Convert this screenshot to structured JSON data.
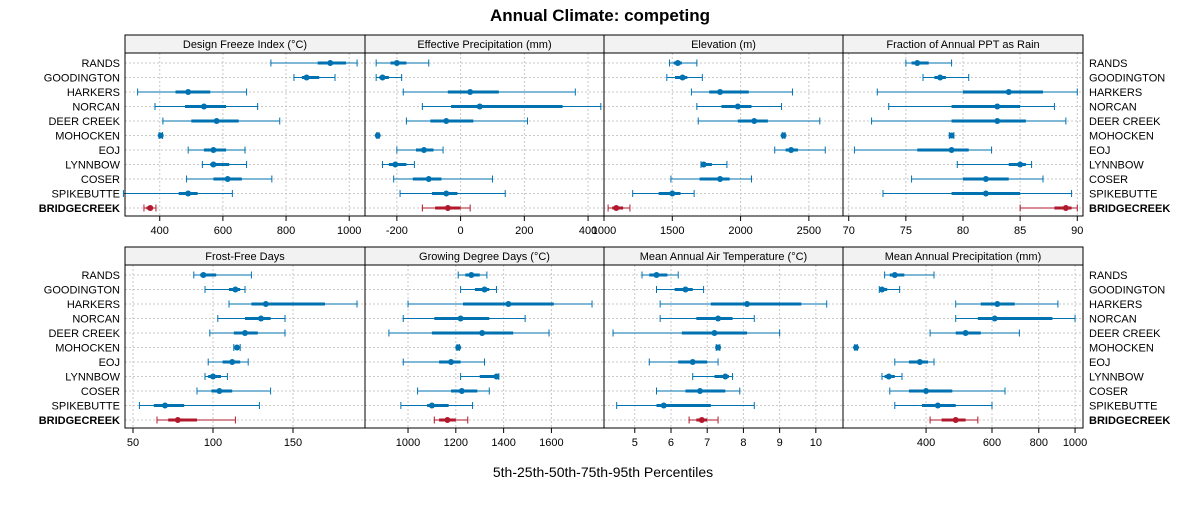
{
  "title": "Annual Climate: competing",
  "xlabel": "5th-25th-50th-75th-95th Percentiles",
  "colors": {
    "series": "#0072b2",
    "highlight": "#b2182b",
    "strip": "#f2f2f2",
    "grid": "#c8c8c8",
    "frame": "#000000"
  },
  "chart_data": {
    "type": "percentile-dotplot",
    "sites": [
      "RANDS",
      "GOODINGTON",
      "HARKERS",
      "NORCAN",
      "DEER CREEK",
      "MOHOCKEN",
      "EOJ",
      "LYNNBOW",
      "COSER",
      "SPIKEBUTTE",
      "BRIDGECREEK"
    ],
    "highlight_site": "BRIDGECREEK",
    "percentile_order": [
      "p5",
      "p25",
      "p50",
      "p75",
      "p95"
    ],
    "panels": [
      {
        "title": "Design Freeze Index (°C)",
        "scale": "linear",
        "xlim": [
          290,
          1050
        ],
        "ticks": [
          400,
          600,
          800,
          1000
        ],
        "tick_labels": [
          "400",
          "600",
          "800",
          "1000"
        ],
        "values": [
          [
            752,
            900,
            940,
            990,
            1025
          ],
          [
            825,
            850,
            865,
            905,
            955
          ],
          [
            330,
            450,
            490,
            560,
            675
          ],
          [
            385,
            480,
            540,
            610,
            710
          ],
          [
            410,
            500,
            580,
            650,
            780
          ],
          [
            398,
            400,
            403,
            406,
            409
          ],
          [
            490,
            540,
            570,
            610,
            670
          ],
          [
            535,
            560,
            570,
            620,
            675
          ],
          [
            485,
            570,
            615,
            660,
            755
          ],
          [
            285,
            460,
            490,
            520,
            630
          ],
          [
            350,
            358,
            370,
            378,
            388
          ]
        ]
      },
      {
        "title": "Effective Precipitation (mm)",
        "scale": "linear",
        "xlim": [
          -300,
          450
        ],
        "ticks": [
          -200,
          0,
          200,
          400
        ],
        "tick_labels": [
          "-200",
          "0",
          "200",
          "400"
        ],
        "values": [
          [
            -265,
            -220,
            -200,
            -170,
            -100
          ],
          [
            -265,
            -255,
            -245,
            -225,
            -185
          ],
          [
            -180,
            -40,
            30,
            120,
            360
          ],
          [
            -120,
            -30,
            60,
            320,
            440
          ],
          [
            -170,
            -95,
            -45,
            40,
            210
          ],
          [
            -263,
            -262,
            -260,
            -258,
            -256
          ],
          [
            -200,
            -140,
            -115,
            -85,
            -55
          ],
          [
            -245,
            -225,
            -205,
            -170,
            -145
          ],
          [
            -210,
            -150,
            -100,
            -60,
            100
          ],
          [
            -190,
            -90,
            -45,
            -10,
            140
          ],
          [
            -120,
            -80,
            -40,
            0,
            30
          ]
        ]
      },
      {
        "title": "Elevation (m)",
        "scale": "linear",
        "xlim": [
          1000,
          2750
        ],
        "ticks": [
          1000,
          1500,
          2000,
          2500
        ],
        "tick_labels": [
          "1000",
          "1500",
          "2000",
          "2500"
        ],
        "values": [
          [
            1480,
            1510,
            1540,
            1570,
            1680
          ],
          [
            1460,
            1520,
            1575,
            1610,
            1720
          ],
          [
            1640,
            1770,
            1850,
            2060,
            2380
          ],
          [
            1680,
            1860,
            1980,
            2080,
            2300
          ],
          [
            1690,
            1980,
            2100,
            2200,
            2580
          ],
          [
            2305,
            2310,
            2315,
            2320,
            2325
          ],
          [
            2250,
            2330,
            2370,
            2420,
            2620
          ],
          [
            1710,
            1720,
            1730,
            1790,
            1900
          ],
          [
            1490,
            1700,
            1850,
            1920,
            2080
          ],
          [
            1210,
            1400,
            1500,
            1560,
            1660
          ],
          [
            1030,
            1060,
            1090,
            1140,
            1190
          ]
        ]
      },
      {
        "title": "Fraction of Annual PPT as Rain",
        "scale": "linear",
        "xlim": [
          69.5,
          90.5
        ],
        "ticks": [
          70,
          75,
          80,
          85,
          90
        ],
        "tick_labels": [
          "70",
          "75",
          "80",
          "85",
          "90"
        ],
        "values": [
          [
            75,
            75.5,
            76,
            77,
            79
          ],
          [
            76.5,
            77.5,
            78,
            78.5,
            80.5
          ],
          [
            72.5,
            80,
            84,
            87,
            90
          ],
          [
            73.5,
            79,
            83,
            85,
            88
          ],
          [
            72,
            79,
            83,
            85.5,
            89
          ],
          [
            78.8,
            78.9,
            79,
            79.1,
            79.2
          ],
          [
            70.5,
            76,
            79,
            80.5,
            82.5
          ],
          [
            79.5,
            84,
            85,
            85.5,
            86
          ],
          [
            75.5,
            80,
            82,
            84,
            87
          ],
          [
            73,
            79,
            82,
            85,
            89.5
          ],
          [
            85,
            88,
            89,
            89.5,
            90
          ]
        ]
      },
      {
        "title": "Frost-Free Days",
        "scale": "linear",
        "xlim": [
          45,
          195
        ],
        "ticks": [
          50,
          100,
          150
        ],
        "tick_labels": [
          "50",
          "100",
          "150"
        ],
        "values": [
          [
            88,
            92,
            94,
            102,
            124
          ],
          [
            95,
            110,
            114,
            117,
            120
          ],
          [
            110,
            124,
            133,
            170,
            190
          ],
          [
            103,
            120,
            130,
            136,
            145
          ],
          [
            98,
            113,
            120,
            128,
            145
          ],
          [
            113,
            114,
            115,
            116,
            117
          ],
          [
            97,
            106,
            112,
            117,
            122
          ],
          [
            95,
            97,
            100,
            105,
            109
          ],
          [
            90,
            99,
            104,
            112,
            136
          ],
          [
            54,
            63,
            70,
            82,
            129
          ],
          [
            65,
            72,
            78,
            90,
            114
          ]
        ]
      },
      {
        "title": "Growing Degree Days (°C)",
        "scale": "linear",
        "xlim": [
          820,
          1820
        ],
        "ticks": [
          1000,
          1200,
          1400,
          1600
        ],
        "tick_labels": [
          "1000",
          "1200",
          "1400",
          "1600"
        ],
        "values": [
          [
            1210,
            1240,
            1265,
            1300,
            1330
          ],
          [
            1220,
            1280,
            1320,
            1340,
            1370
          ],
          [
            1000,
            1230,
            1420,
            1610,
            1770
          ],
          [
            980,
            1110,
            1220,
            1340,
            1490
          ],
          [
            920,
            1100,
            1310,
            1440,
            1590
          ],
          [
            1205,
            1207,
            1210,
            1213,
            1215
          ],
          [
            980,
            1130,
            1180,
            1220,
            1320
          ],
          [
            1220,
            1300,
            1370,
            1375,
            1380
          ],
          [
            1040,
            1180,
            1225,
            1290,
            1340
          ],
          [
            970,
            1080,
            1100,
            1170,
            1270
          ],
          [
            1110,
            1130,
            1165,
            1200,
            1250
          ]
        ]
      },
      {
        "title": "Mean Annual Air Temperature (°C)",
        "scale": "linear",
        "xlim": [
          4.15,
          10.75
        ],
        "ticks": [
          5,
          6,
          7,
          8,
          9,
          10
        ],
        "tick_labels": [
          "5",
          "6",
          "7",
          "8",
          "9",
          "10"
        ],
        "values": [
          [
            5.2,
            5.4,
            5.6,
            5.9,
            6.2
          ],
          [
            5.6,
            6.1,
            6.4,
            6.6,
            6.9
          ],
          [
            5.7,
            7.1,
            8.1,
            9.6,
            10.3
          ],
          [
            5.7,
            6.7,
            7.3,
            7.7,
            8.3
          ],
          [
            4.4,
            6.3,
            7.2,
            8.1,
            9.0
          ],
          [
            7.25,
            7.28,
            7.3,
            7.32,
            7.35
          ],
          [
            5.4,
            6.2,
            6.6,
            7.0,
            7.3
          ],
          [
            6.6,
            7.2,
            7.5,
            7.6,
            7.7
          ],
          [
            5.6,
            6.4,
            6.8,
            7.5,
            7.9
          ],
          [
            4.5,
            5.6,
            5.8,
            7.1,
            8.3
          ],
          [
            6.5,
            6.7,
            6.85,
            7.0,
            7.3
          ]
        ]
      },
      {
        "title": "Mean Annual Precipitation (mm)",
        "scale": "log",
        "xlim": [
          240,
          1050
        ],
        "ticks": [
          400,
          600,
          800,
          1000
        ],
        "tick_labels": [
          "400",
          "600",
          "800",
          "1000"
        ],
        "values": [
          [
            310,
            320,
            330,
            350,
            420
          ],
          [
            300,
            303,
            305,
            315,
            340
          ],
          [
            480,
            560,
            620,
            690,
            900
          ],
          [
            480,
            550,
            610,
            870,
            1000
          ],
          [
            410,
            480,
            510,
            560,
            710
          ],
          [
            258,
            259,
            260,
            261,
            262
          ],
          [
            330,
            360,
            385,
            405,
            420
          ],
          [
            305,
            310,
            318,
            330,
            345
          ],
          [
            320,
            360,
            400,
            470,
            650
          ],
          [
            330,
            390,
            430,
            480,
            600
          ],
          [
            410,
            440,
            480,
            510,
            550
          ]
        ]
      }
    ]
  }
}
